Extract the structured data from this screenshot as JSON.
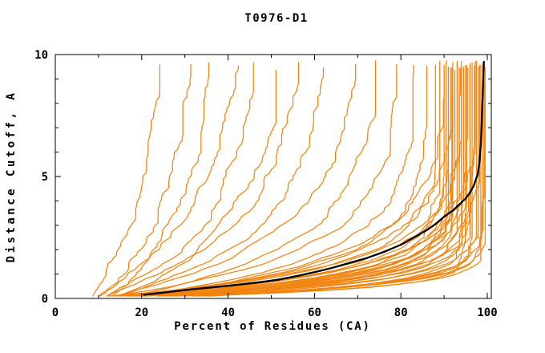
{
  "page": {
    "background": "#ffffff"
  },
  "chart_data": {
    "type": "line",
    "title": "T0976-D1",
    "xlabel": "Percent of Residues (CA)",
    "ylabel": "Distance Cutoff, A",
    "xlim": [
      0,
      100
    ],
    "ylim": [
      0,
      10
    ],
    "grid": false,
    "legend": "none",
    "x_major_ticks": [
      0,
      20,
      40,
      60,
      80,
      100
    ],
    "x_tick_labels": [
      "0",
      "20",
      "40",
      "60",
      "80",
      "100"
    ],
    "x_minor_step": 10,
    "y_major_ticks": [
      0,
      5,
      10
    ],
    "y_tick_labels": [
      "0",
      "5",
      "10"
    ],
    "y_minor_step": 1,
    "colors": {
      "model_lines": "#f18511",
      "reference_line": "#000000",
      "axis": "#000000"
    },
    "series": [
      {
        "name": "reference-black-curve",
        "color": "#000000",
        "points": [
          [
            20.5,
            0.15
          ],
          [
            24,
            0.22
          ],
          [
            28,
            0.3
          ],
          [
            32,
            0.38
          ],
          [
            36,
            0.45
          ],
          [
            40,
            0.52
          ],
          [
            44,
            0.6
          ],
          [
            48,
            0.68
          ],
          [
            52,
            0.78
          ],
          [
            56,
            0.92
          ],
          [
            60,
            1.08
          ],
          [
            64,
            1.25
          ],
          [
            68,
            1.45
          ],
          [
            72,
            1.65
          ],
          [
            76,
            1.9
          ],
          [
            80,
            2.2
          ],
          [
            83,
            2.5
          ],
          [
            86,
            2.8
          ],
          [
            88,
            3.05
          ],
          [
            90,
            3.35
          ],
          [
            92,
            3.6
          ],
          [
            93.5,
            3.85
          ],
          [
            95,
            4.1
          ],
          [
            96,
            4.35
          ],
          [
            96.8,
            4.6
          ],
          [
            97.4,
            4.9
          ],
          [
            97.8,
            5.1
          ],
          [
            98.2,
            5.6
          ],
          [
            98.5,
            6.3
          ],
          [
            98.7,
            7.2
          ],
          [
            98.9,
            8.2
          ],
          [
            99.1,
            9.2
          ],
          [
            99.2,
            9.7
          ]
        ]
      }
    ],
    "model_curves": {
      "count": 45,
      "color": "#f18511",
      "y_top": 9.7,
      "param_format": [
        "x_start_percent",
        "x_end_percent",
        "tau"
      ],
      "params": [
        [
          8,
          26,
          4.5
        ],
        [
          10,
          33,
          4.0
        ],
        [
          12,
          37,
          3.5
        ],
        [
          9,
          45,
          3.8
        ],
        [
          11,
          48,
          3.2
        ],
        [
          14,
          53,
          3.0
        ],
        [
          10,
          58,
          2.8
        ],
        [
          13,
          63,
          2.6
        ],
        [
          12,
          70,
          2.5
        ],
        [
          15,
          75,
          2.2
        ],
        [
          11,
          79,
          1.8
        ],
        [
          14,
          83,
          1.6
        ],
        [
          12,
          86,
          1.4
        ],
        [
          5,
          88,
          1.1
        ],
        [
          16,
          89,
          0.9
        ],
        [
          9,
          90,
          1.0
        ],
        [
          18,
          90.5,
          0.8
        ],
        [
          7,
          91,
          0.75
        ],
        [
          12,
          91.5,
          1.2
        ],
        [
          20,
          92,
          0.7
        ],
        [
          10,
          92.5,
          0.9
        ],
        [
          15,
          93,
          0.6
        ],
        [
          8,
          93.5,
          1.0
        ],
        [
          17,
          94,
          0.55
        ],
        [
          11,
          94.5,
          0.8
        ],
        [
          19,
          95,
          0.5
        ],
        [
          6,
          95.5,
          0.9
        ],
        [
          13,
          96,
          0.65
        ],
        [
          16,
          96.5,
          0.45
        ],
        [
          9,
          97,
          0.7
        ],
        [
          21,
          97.5,
          0.5
        ],
        [
          12,
          98,
          0.6
        ],
        [
          14,
          98.5,
          0.4
        ],
        [
          18,
          99,
          0.55
        ],
        [
          10,
          99.3,
          0.45
        ],
        [
          22,
          99.5,
          0.5
        ],
        [
          7,
          94,
          1.3
        ],
        [
          13,
          92,
          1.5
        ],
        [
          16,
          90,
          1.7
        ],
        [
          11,
          96,
          1.1
        ],
        [
          15,
          97.2,
          0.85
        ],
        [
          8,
          98.2,
          0.75
        ],
        [
          19,
          93.8,
          0.95
        ],
        [
          6,
          91.8,
          0.6
        ],
        [
          12,
          95.2,
          0.35
        ]
      ]
    }
  }
}
